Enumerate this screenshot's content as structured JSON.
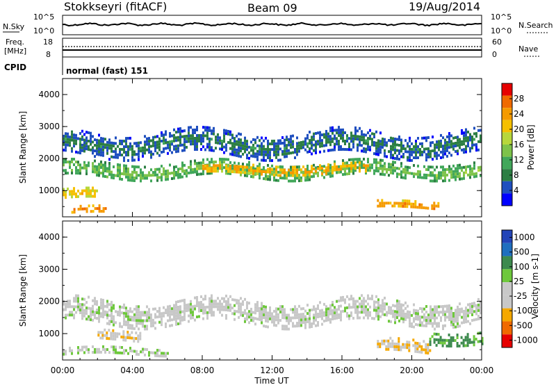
{
  "header": {
    "station": "Stokkseyri (fitACF)",
    "beam": "Beam 09",
    "date": "19/Aug/2014"
  },
  "noise_panel": {
    "left_label": "N.Sky",
    "right_label": "N.Search",
    "tick_top": "10^5",
    "tick_bottom": "10^0"
  },
  "freq_panel": {
    "left_label_line1": "Freq.",
    "left_label_line2": "[MHz]",
    "left_ticks": [
      "18",
      "8"
    ],
    "right_label": "Nave",
    "right_ticks": [
      "60",
      "0"
    ],
    "cpid_label": "CPID",
    "cpid_value": "normal (fast) 151"
  },
  "colors": {
    "power": [
      "#0000ff",
      "#1f4fbf",
      "#2c7e43",
      "#41a75a",
      "#7ec34a",
      "#b7d73b",
      "#f5c000",
      "#f59a00",
      "#f06a00",
      "#e60000"
    ],
    "velocity": [
      "#e60000",
      "#f06a00",
      "#f5a800",
      "#c8c8c8",
      "#c8c8c8",
      "#6ec83c",
      "#3d8a4e",
      "#1f6fbf",
      "#2244b8"
    ]
  },
  "chart_data": [
    {
      "type": "heatmap",
      "quantity": "Power",
      "ylabel": "Slant Range [km]",
      "ylim": [
        180,
        4500
      ],
      "yticks": [
        "1000",
        "2000",
        "3000",
        "4000"
      ],
      "colorbar": {
        "title": "Power [dB]",
        "ticks": [
          "4",
          "8",
          "12",
          "16",
          "20",
          "24",
          "28"
        ],
        "range": [
          0,
          32
        ]
      },
      "features": [
        {
          "x_start": 0.0,
          "x_end": 24.0,
          "y_center": 1650,
          "y_width": 500,
          "value": 14
        },
        {
          "x_start": 8.0,
          "x_end": 17.5,
          "y_center": 1700,
          "y_width": 280,
          "value": 24
        },
        {
          "x_start": 0.0,
          "x_end": 2.0,
          "y_center": 900,
          "y_width": 300,
          "value": 22
        },
        {
          "x_start": 0.5,
          "x_end": 2.5,
          "y_center": 420,
          "y_width": 200,
          "value": 26
        },
        {
          "x_start": 18.0,
          "x_end": 21.5,
          "y_center": 550,
          "y_width": 250,
          "value": 25
        },
        {
          "x_start": 0.0,
          "x_end": 24.0,
          "y_center": 2500,
          "y_width": 700,
          "value": 8
        }
      ]
    },
    {
      "type": "heatmap",
      "quantity": "Velocity",
      "ylabel": "Slant Range [km]",
      "ylim": [
        180,
        4500
      ],
      "yticks": [
        "1000",
        "2000",
        "3000",
        "4000"
      ],
      "colorbar": {
        "title": "Velocity [m s-1]",
        "ticks": [
          "1000",
          "500",
          "100",
          "25",
          "-25",
          "-100",
          "-500",
          "-1000"
        ],
        "range": [
          -1000,
          1000
        ]
      },
      "features": [
        {
          "x_start": 0.0,
          "x_end": 24.0,
          "y_center": 1700,
          "y_width": 700,
          "value": 0
        },
        {
          "x_start": 2.0,
          "x_end": 4.5,
          "y_center": 950,
          "y_width": 300,
          "value": -300
        },
        {
          "x_start": 0.0,
          "x_end": 6.0,
          "y_center": 450,
          "y_width": 250,
          "value": 80
        },
        {
          "x_start": 18.0,
          "x_end": 21.0,
          "y_center": 600,
          "y_width": 400,
          "value": -300
        },
        {
          "x_start": 21.0,
          "x_end": 24.0,
          "y_center": 900,
          "y_width": 400,
          "value": 400
        }
      ]
    }
  ],
  "xaxis": {
    "label": "Time UT",
    "ticks": [
      "00:00",
      "04:00",
      "08:00",
      "12:00",
      "16:00",
      "20:00",
      "00:00"
    ],
    "range": [
      0,
      24
    ]
  }
}
